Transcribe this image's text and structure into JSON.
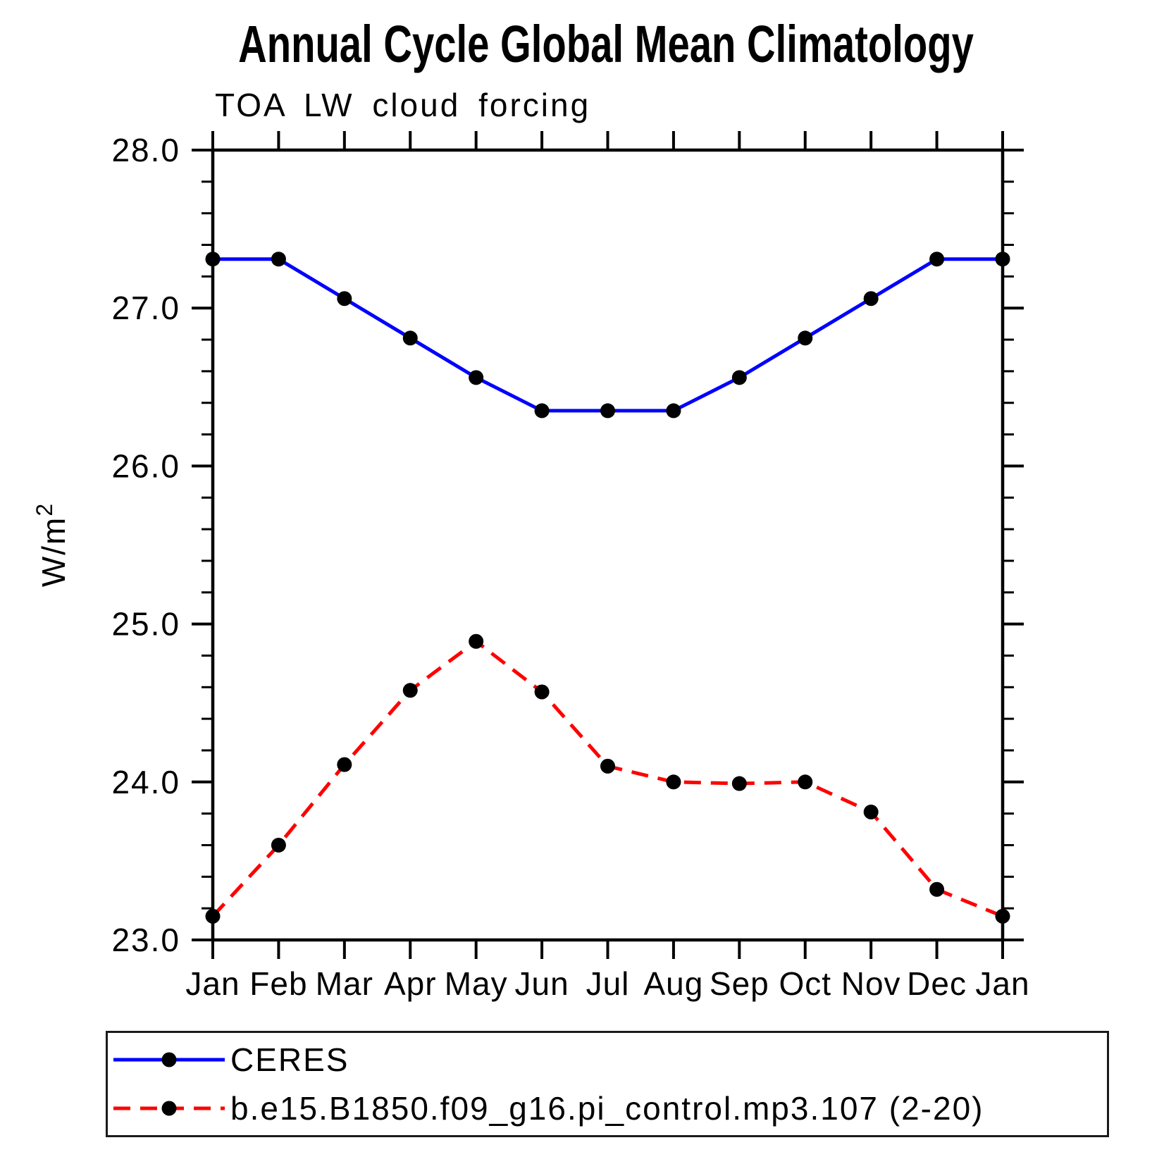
{
  "chart_data": {
    "type": "line",
    "title": "Annual Cycle Global Mean Climatology",
    "subtitle": "TOA LW cloud forcing",
    "ylabel": "W/m²",
    "xlabel": "",
    "x_categories": [
      "Jan",
      "Feb",
      "Mar",
      "Apr",
      "May",
      "Jun",
      "Jul",
      "Aug",
      "Sep",
      "Oct",
      "Nov",
      "Dec",
      "Jan"
    ],
    "ylim": [
      23.0,
      28.0
    ],
    "y_major_tick_labels": [
      "23.0",
      "24.0",
      "25.0",
      "26.0",
      "27.0",
      "28.0"
    ],
    "y_minor_step": 0.2,
    "grid": false,
    "legend_position": "bottom-left-box",
    "series": [
      {
        "name": "CERES",
        "color": "#0000ff",
        "line_style": "solid",
        "marker": "filled-circle",
        "marker_color": "#000000",
        "values": [
          27.31,
          27.31,
          27.06,
          26.81,
          26.56,
          26.35,
          26.35,
          26.35,
          26.56,
          26.81,
          27.06,
          27.31,
          27.31
        ]
      },
      {
        "name": "b.e15.B1850.f09_g16.pi_control.mp3.107 (2-20)",
        "color": "#ff0000",
        "line_style": "dashed",
        "marker": "filled-circle",
        "marker_color": "#000000",
        "values": [
          23.15,
          23.6,
          24.11,
          24.58,
          24.89,
          24.57,
          24.1,
          24.0,
          23.99,
          24.0,
          23.81,
          23.32,
          23.15
        ]
      }
    ],
    "axis_color": "#000000",
    "background_color": "#ffffff"
  }
}
